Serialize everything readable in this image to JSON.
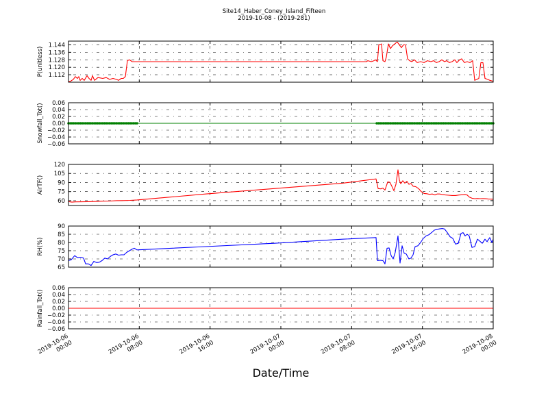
{
  "figure": {
    "title": "Site14_Haber_Coney_Island_Fifteen",
    "subtitle": "2019-10-08 - (2019-281)",
    "xlabel": "Date/Time"
  },
  "chart_data": [
    {
      "type": "line",
      "ylabel": "P(unitless)",
      "ylim": [
        1.104,
        1.148
      ],
      "yticks": [
        1.112,
        1.12,
        1.128,
        1.136,
        1.144
      ],
      "ytick_labels": [
        "1.112",
        "1.120",
        "1.128",
        "1.136",
        "1.144"
      ],
      "grid": true,
      "color": "#ff0000",
      "points": [
        [
          0,
          1.105
        ],
        [
          0.3,
          1.105
        ],
        [
          0.7,
          1.107
        ],
        [
          1,
          1.11
        ],
        [
          1.3,
          1.108
        ],
        [
          1.5,
          1.11
        ],
        [
          1.7,
          1.106
        ],
        [
          2,
          1.108
        ],
        [
          2.3,
          1.106
        ],
        [
          2.7,
          1.111
        ],
        [
          3,
          1.108
        ],
        [
          3.3,
          1.106
        ],
        [
          3.5,
          1.111
        ],
        [
          3.8,
          1.106
        ],
        [
          4.3,
          1.109
        ],
        [
          5,
          1.108
        ],
        [
          5.5,
          1.109
        ],
        [
          6,
          1.107
        ],
        [
          6.5,
          1.108
        ],
        [
          7,
          1.107
        ],
        [
          7.3,
          1.106
        ],
        [
          7.7,
          1.108
        ],
        [
          8,
          1.108
        ],
        [
          8.3,
          1.11
        ],
        [
          8.6,
          1.127
        ],
        [
          8.9,
          1.128
        ],
        [
          9.3,
          1.126
        ],
        [
          11,
          1.126
        ],
        [
          22,
          1.126
        ],
        [
          33,
          1.126
        ],
        [
          43.5,
          1.126
        ],
        [
          43.7,
          1.127
        ],
        [
          44.2,
          1.126
        ],
        [
          44.6,
          1.127
        ],
        [
          44.8,
          1.128
        ],
        [
          45.1,
          1.126
        ],
        [
          45.3,
          1.144
        ],
        [
          45.7,
          1.145
        ],
        [
          45.9,
          1.127
        ],
        [
          46.2,
          1.126
        ],
        [
          46.4,
          1.131
        ],
        [
          46.7,
          1.145
        ],
        [
          47,
          1.14
        ],
        [
          47.3,
          1.143
        ],
        [
          47.8,
          1.146
        ],
        [
          48,
          1.147
        ],
        [
          48.3,
          1.144
        ],
        [
          48.6,
          1.141
        ],
        [
          48.9,
          1.144
        ],
        [
          49.2,
          1.144
        ],
        [
          49.5,
          1.129
        ],
        [
          49.8,
          1.127
        ],
        [
          50.1,
          1.126
        ],
        [
          50.5,
          1.128
        ],
        [
          50.9,
          1.125
        ],
        [
          51.4,
          1.126
        ],
        [
          51.9,
          1.125
        ],
        [
          52.4,
          1.127
        ],
        [
          52.9,
          1.126
        ],
        [
          53.3,
          1.127
        ],
        [
          53.7,
          1.125
        ],
        [
          54.1,
          1.126
        ],
        [
          54.5,
          1.128
        ],
        [
          54.9,
          1.126
        ],
        [
          55.2,
          1.127
        ],
        [
          55.6,
          1.125
        ],
        [
          56,
          1.126
        ],
        [
          56.4,
          1.128
        ],
        [
          56.7,
          1.125
        ],
        [
          57.1,
          1.128
        ],
        [
          57.4,
          1.129
        ],
        [
          57.8,
          1.125
        ],
        [
          58.2,
          1.126
        ],
        [
          58.6,
          1.125
        ],
        [
          59,
          1.127
        ],
        [
          59.3,
          1.106
        ],
        [
          59.6,
          1.107
        ],
        [
          59.9,
          1.108
        ],
        [
          60.2,
          1.125
        ],
        [
          60.5,
          1.125
        ],
        [
          60.8,
          1.108
        ],
        [
          61.2,
          1.107
        ],
        [
          61.5,
          1.106
        ],
        [
          62,
          1.105
        ]
      ]
    },
    {
      "type": "scatter",
      "ylabel": "Snowfall_Tot()",
      "ylim": [
        -0.06,
        0.06
      ],
      "yticks": [
        -0.06,
        -0.04,
        -0.02,
        0.0,
        0.02,
        0.04,
        0.06
      ],
      "ytick_labels": [
        "−0.06",
        "−0.04",
        "−0.02",
        "0.00",
        "0.02",
        "0.04",
        "0.06"
      ],
      "grid": true,
      "color": "#008000",
      "constant_value": 0.0,
      "marker_ranges": [
        [
          0,
          10
        ],
        [
          45,
          62
        ]
      ],
      "marker_step": 0.25
    },
    {
      "type": "line",
      "ylabel": "AirTF()",
      "ylim": [
        52,
        120
      ],
      "yticks": [
        60,
        75,
        90,
        105,
        120
      ],
      "ytick_labels": [
        "60",
        "75",
        "90",
        "105",
        "120"
      ],
      "grid": true,
      "color": "#ff0000",
      "points": [
        [
          0,
          58.5
        ],
        [
          0.5,
          57.6
        ],
        [
          1,
          58
        ],
        [
          2,
          58.1
        ],
        [
          3,
          58.4
        ],
        [
          4,
          58.7
        ],
        [
          5,
          59.2
        ],
        [
          6,
          59.4
        ],
        [
          7,
          60
        ],
        [
          8,
          60.2
        ],
        [
          9,
          60.5
        ],
        [
          10,
          61.2
        ],
        [
          15,
          66
        ],
        [
          20,
          71
        ],
        [
          30,
          80
        ],
        [
          40,
          89
        ],
        [
          44.9,
          96
        ],
        [
          45.2,
          80
        ],
        [
          45.6,
          79.5
        ],
        [
          45.9,
          80.8
        ],
        [
          46.2,
          77.5
        ],
        [
          46.6,
          91
        ],
        [
          46.9,
          90.5
        ],
        [
          47.2,
          84
        ],
        [
          47.5,
          76.5
        ],
        [
          47.8,
          87
        ],
        [
          48.1,
          111
        ],
        [
          48.3,
          94
        ],
        [
          48.5,
          88
        ],
        [
          48.8,
          93
        ],
        [
          49.1,
          89
        ],
        [
          49.4,
          92
        ],
        [
          49.7,
          87
        ],
        [
          50,
          88.5
        ],
        [
          50.3,
          84
        ],
        [
          50.7,
          83
        ],
        [
          51.1,
          80
        ],
        [
          51.5,
          75
        ],
        [
          51.9,
          72
        ],
        [
          52.3,
          71.5
        ],
        [
          52.7,
          70.5
        ],
        [
          53.1,
          71
        ],
        [
          53.5,
          69.5
        ],
        [
          53.8,
          71
        ],
        [
          54.2,
          71
        ],
        [
          54.6,
          70
        ],
        [
          55,
          69.5
        ],
        [
          55.5,
          69
        ],
        [
          56,
          68.6
        ],
        [
          56.5,
          68.6
        ],
        [
          57,
          69.3
        ],
        [
          57.5,
          69.8
        ],
        [
          57.9,
          70
        ],
        [
          58.2,
          69.3
        ],
        [
          58.5,
          66
        ],
        [
          58.9,
          64
        ],
        [
          59.3,
          63.3
        ],
        [
          59.7,
          63.6
        ],
        [
          60.1,
          63.3
        ],
        [
          60.5,
          63.5
        ],
        [
          60.9,
          63.2
        ],
        [
          61.3,
          62.6
        ],
        [
          61.7,
          62.5
        ],
        [
          62,
          62.3
        ]
      ]
    },
    {
      "type": "line",
      "ylabel": "RH(%)",
      "ylim": [
        65,
        90
      ],
      "yticks": [
        65,
        70,
        75,
        80,
        85,
        90
      ],
      "ytick_labels": [
        "65",
        "70",
        "75",
        "80",
        "85",
        "90"
      ],
      "grid": true,
      "color": "#0000ff",
      "points": [
        [
          0,
          69
        ],
        [
          0.4,
          69.5
        ],
        [
          0.9,
          72
        ],
        [
          1.3,
          70.8
        ],
        [
          1.8,
          71
        ],
        [
          2.2,
          70.5
        ],
        [
          2.5,
          67
        ],
        [
          2.9,
          67
        ],
        [
          3.3,
          66
        ],
        [
          3.7,
          68.5
        ],
        [
          4.1,
          67.8
        ],
        [
          4.5,
          68
        ],
        [
          4.9,
          69
        ],
        [
          5.3,
          70.5
        ],
        [
          5.7,
          70
        ],
        [
          6.1,
          71.5
        ],
        [
          6.5,
          72.5
        ],
        [
          6.9,
          73
        ],
        [
          7.3,
          72.3
        ],
        [
          7.7,
          72.5
        ],
        [
          8.1,
          72.5
        ],
        [
          8.5,
          74
        ],
        [
          8.9,
          75
        ],
        [
          9.3,
          76
        ],
        [
          9.6,
          76.5
        ],
        [
          10,
          75.5
        ],
        [
          20,
          77.5
        ],
        [
          30,
          79.5
        ],
        [
          40,
          82
        ],
        [
          44.9,
          83
        ],
        [
          45.1,
          69
        ],
        [
          45.5,
          69.2
        ],
        [
          45.9,
          69
        ],
        [
          46.2,
          67
        ],
        [
          46.5,
          76.5
        ],
        [
          46.8,
          76.7
        ],
        [
          47.1,
          72
        ],
        [
          47.4,
          70
        ],
        [
          47.7,
          74
        ],
        [
          48.1,
          84
        ],
        [
          48.4,
          67.5
        ],
        [
          48.7,
          78
        ],
        [
          49,
          73.5
        ],
        [
          49.3,
          73
        ],
        [
          49.7,
          70
        ],
        [
          50,
          70.5
        ],
        [
          50.3,
          72.5
        ],
        [
          50.6,
          77.5
        ],
        [
          51,
          78
        ],
        [
          51.4,
          80
        ],
        [
          51.8,
          82.5
        ],
        [
          52.2,
          84
        ],
        [
          52.6,
          84.7
        ],
        [
          53,
          86
        ],
        [
          53.4,
          87.5
        ],
        [
          53.8,
          88
        ],
        [
          54.2,
          88.3
        ],
        [
          54.6,
          88.5
        ],
        [
          54.9,
          88.2
        ],
        [
          55.3,
          86
        ],
        [
          55.7,
          83.5
        ],
        [
          56.1,
          82.5
        ],
        [
          56.5,
          79
        ],
        [
          56.9,
          79.5
        ],
        [
          57.3,
          85.5
        ],
        [
          57.6,
          86
        ],
        [
          57.9,
          84
        ],
        [
          58.2,
          85
        ],
        [
          58.5,
          84
        ],
        [
          58.9,
          77
        ],
        [
          59.3,
          77.5
        ],
        [
          59.7,
          82
        ],
        [
          60,
          81
        ],
        [
          60.4,
          79.5
        ],
        [
          60.8,
          82
        ],
        [
          61.1,
          80.5
        ],
        [
          61.5,
          83
        ],
        [
          61.8,
          80
        ],
        [
          62,
          82
        ]
      ]
    },
    {
      "type": "line",
      "ylabel": "Rainfall_Tot()",
      "ylim": [
        -0.06,
        0.06
      ],
      "yticks": [
        -0.06,
        -0.04,
        -0.02,
        0.0,
        0.02,
        0.04,
        0.06
      ],
      "ytick_labels": [
        "−0.06",
        "−0.04",
        "−0.02",
        "0.00",
        "0.02",
        "0.04",
        "0.06"
      ],
      "grid": true,
      "color": "#ff0000",
      "points": [
        [
          0,
          0
        ],
        [
          62,
          0
        ]
      ]
    }
  ],
  "x_axis": {
    "range_hours": [
      0,
      62
    ],
    "ticks_hours": [
      0,
      10.33,
      20.67,
      31,
      41.33,
      51.67,
      62
    ],
    "tick_dates": [
      "2019-10-06",
      "2019-10-06",
      "2019-10-06",
      "2019-10-07",
      "2019-10-07",
      "2019-10-07",
      "2019-10-08"
    ],
    "tick_times": [
      "00:00",
      "08:00",
      "16:00",
      "00:00",
      "08:00",
      "16:00",
      "00:00"
    ]
  }
}
